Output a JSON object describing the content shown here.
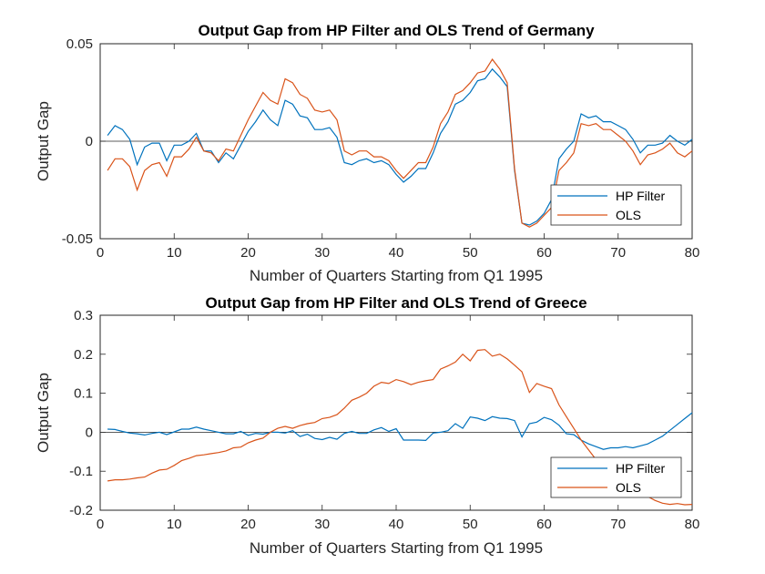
{
  "chart_data": [
    {
      "type": "line",
      "title": "Output Gap from HP Filter and OLS Trend of Germany",
      "xlabel": "Number of Quarters Starting from Q1 1995",
      "ylabel": "Output Gap",
      "xlim": [
        0,
        80
      ],
      "ylim": [
        -0.05,
        0.05
      ],
      "xticks": [
        0,
        10,
        20,
        30,
        40,
        50,
        60,
        70,
        80
      ],
      "yticks": [
        -0.05,
        0,
        0.05
      ],
      "ytick_labels": [
        "-0.05",
        "0",
        "0.05"
      ],
      "zero_line": true,
      "grid": false,
      "legend_position": "bottom-right",
      "x": [
        1,
        2,
        3,
        4,
        5,
        6,
        7,
        8,
        9,
        10,
        11,
        12,
        13,
        14,
        15,
        16,
        17,
        18,
        19,
        20,
        21,
        22,
        23,
        24,
        25,
        26,
        27,
        28,
        29,
        30,
        31,
        32,
        33,
        34,
        35,
        36,
        37,
        38,
        39,
        40,
        41,
        42,
        43,
        44,
        45,
        46,
        47,
        48,
        49,
        50,
        51,
        52,
        53,
        54,
        55,
        56,
        57,
        58,
        59,
        60,
        61,
        62,
        63,
        64,
        65,
        66,
        67,
        68,
        69,
        70,
        71,
        72,
        73,
        74,
        75,
        76,
        77,
        78,
        79,
        80
      ],
      "series": [
        {
          "name": "HP Filter",
          "color": "#0072BD",
          "values": [
            0.003,
            0.008,
            0.006,
            0.001,
            -0.012,
            -0.003,
            -0.001,
            -0.001,
            -0.01,
            -0.002,
            -0.002,
            0.0,
            0.004,
            -0.005,
            -0.005,
            -0.011,
            -0.006,
            -0.009,
            -0.002,
            0.005,
            0.01,
            0.016,
            0.011,
            0.008,
            0.021,
            0.019,
            0.013,
            0.012,
            0.006,
            0.006,
            0.007,
            0.002,
            -0.011,
            -0.012,
            -0.01,
            -0.009,
            -0.011,
            -0.01,
            -0.012,
            -0.017,
            -0.021,
            -0.018,
            -0.014,
            -0.014,
            -0.006,
            0.004,
            0.01,
            0.019,
            0.021,
            0.025,
            0.031,
            0.032,
            0.037,
            0.033,
            0.028,
            -0.015,
            -0.042,
            -0.043,
            -0.041,
            -0.037,
            -0.03,
            -0.009,
            -0.004,
            0.0,
            0.014,
            0.012,
            0.013,
            0.01,
            0.01,
            0.008,
            0.006,
            0.001,
            -0.006,
            -0.002,
            -0.002,
            -0.001,
            0.003,
            0.0,
            -0.002,
            0.001
          ]
        },
        {
          "name": "OLS",
          "color": "#D95319",
          "values": [
            -0.015,
            -0.009,
            -0.009,
            -0.013,
            -0.025,
            -0.015,
            -0.012,
            -0.011,
            -0.018,
            -0.008,
            -0.008,
            -0.004,
            0.002,
            -0.005,
            -0.006,
            -0.01,
            -0.004,
            -0.005,
            0.003,
            0.011,
            0.018,
            0.025,
            0.021,
            0.019,
            0.032,
            0.03,
            0.024,
            0.022,
            0.016,
            0.015,
            0.016,
            0.011,
            -0.005,
            -0.007,
            -0.005,
            -0.005,
            -0.008,
            -0.008,
            -0.01,
            -0.015,
            -0.019,
            -0.015,
            -0.011,
            -0.011,
            -0.003,
            0.009,
            0.015,
            0.024,
            0.026,
            0.03,
            0.035,
            0.036,
            0.042,
            0.037,
            0.03,
            -0.014,
            -0.042,
            -0.044,
            -0.042,
            -0.038,
            -0.034,
            -0.015,
            -0.011,
            -0.006,
            0.009,
            0.008,
            0.009,
            0.006,
            0.006,
            0.003,
            0.0,
            -0.005,
            -0.012,
            -0.007,
            -0.006,
            -0.004,
            -0.001,
            -0.006,
            -0.008,
            -0.005
          ]
        }
      ]
    },
    {
      "type": "line",
      "title": "Output Gap from HP Filter and OLS Trend of Greece",
      "xlabel": "Number of Quarters Starting from Q1 1995",
      "ylabel": "Output Gap",
      "xlim": [
        0,
        80
      ],
      "ylim": [
        -0.2,
        0.3
      ],
      "xticks": [
        0,
        10,
        20,
        30,
        40,
        50,
        60,
        70,
        80
      ],
      "yticks": [
        -0.2,
        -0.1,
        0,
        0.1,
        0.2,
        0.3
      ],
      "ytick_labels": [
        "-0.2",
        "-0.1",
        "0",
        "0.1",
        "0.2",
        "0.3"
      ],
      "zero_line": true,
      "grid": false,
      "legend_position": "bottom-right",
      "x": [
        1,
        2,
        3,
        4,
        5,
        6,
        7,
        8,
        9,
        10,
        11,
        12,
        13,
        14,
        15,
        16,
        17,
        18,
        19,
        20,
        21,
        22,
        23,
        24,
        25,
        26,
        27,
        28,
        29,
        30,
        31,
        32,
        33,
        34,
        35,
        36,
        37,
        38,
        39,
        40,
        41,
        42,
        43,
        44,
        45,
        46,
        47,
        48,
        49,
        50,
        51,
        52,
        53,
        54,
        55,
        56,
        57,
        58,
        59,
        60,
        61,
        62,
        63,
        64,
        65,
        66,
        67,
        68,
        69,
        70,
        71,
        72,
        73,
        74,
        75,
        76,
        77,
        78,
        79,
        80
      ],
      "series": [
        {
          "name": "HP Filter",
          "color": "#0072BD",
          "values": [
            0.008,
            0.007,
            0.002,
            -0.002,
            -0.004,
            -0.007,
            -0.003,
            0.0,
            -0.006,
            0.001,
            0.008,
            0.008,
            0.013,
            0.008,
            0.004,
            0.0,
            -0.004,
            -0.004,
            0.002,
            -0.008,
            -0.003,
            -0.005,
            0.0,
            0.0,
            -0.002,
            0.004,
            -0.011,
            -0.005,
            -0.016,
            -0.019,
            -0.013,
            -0.018,
            -0.003,
            0.002,
            -0.003,
            -0.003,
            0.006,
            0.012,
            0.002,
            0.009,
            -0.02,
            -0.02,
            -0.02,
            -0.021,
            -0.002,
            0.0,
            0.004,
            0.022,
            0.01,
            0.039,
            0.036,
            0.03,
            0.04,
            0.036,
            0.035,
            0.03,
            -0.012,
            0.022,
            0.026,
            0.038,
            0.032,
            0.018,
            -0.004,
            -0.006,
            -0.02,
            -0.03,
            -0.037,
            -0.044,
            -0.04,
            -0.04,
            -0.037,
            -0.04,
            -0.035,
            -0.03,
            -0.02,
            -0.01,
            0.005,
            0.02,
            0.035,
            0.05
          ]
        },
        {
          "name": "OLS",
          "color": "#D95319",
          "values": [
            -0.125,
            -0.122,
            -0.122,
            -0.12,
            -0.117,
            -0.115,
            -0.105,
            -0.097,
            -0.095,
            -0.085,
            -0.073,
            -0.067,
            -0.06,
            -0.058,
            -0.055,
            -0.052,
            -0.048,
            -0.04,
            -0.038,
            -0.027,
            -0.02,
            -0.015,
            0.0,
            0.01,
            0.015,
            0.01,
            0.017,
            0.022,
            0.025,
            0.035,
            0.038,
            0.045,
            0.062,
            0.082,
            0.09,
            0.1,
            0.118,
            0.128,
            0.125,
            0.135,
            0.13,
            0.122,
            0.128,
            0.132,
            0.135,
            0.162,
            0.17,
            0.18,
            0.2,
            0.183,
            0.21,
            0.212,
            0.195,
            0.2,
            0.188,
            0.172,
            0.155,
            0.102,
            0.125,
            0.118,
            0.112,
            0.07,
            0.04,
            0.01,
            -0.02,
            -0.045,
            -0.07,
            -0.09,
            -0.105,
            -0.12,
            -0.135,
            -0.148,
            -0.158,
            -0.165,
            -0.175,
            -0.182,
            -0.185,
            -0.183,
            -0.186,
            -0.185
          ]
        }
      ]
    }
  ]
}
